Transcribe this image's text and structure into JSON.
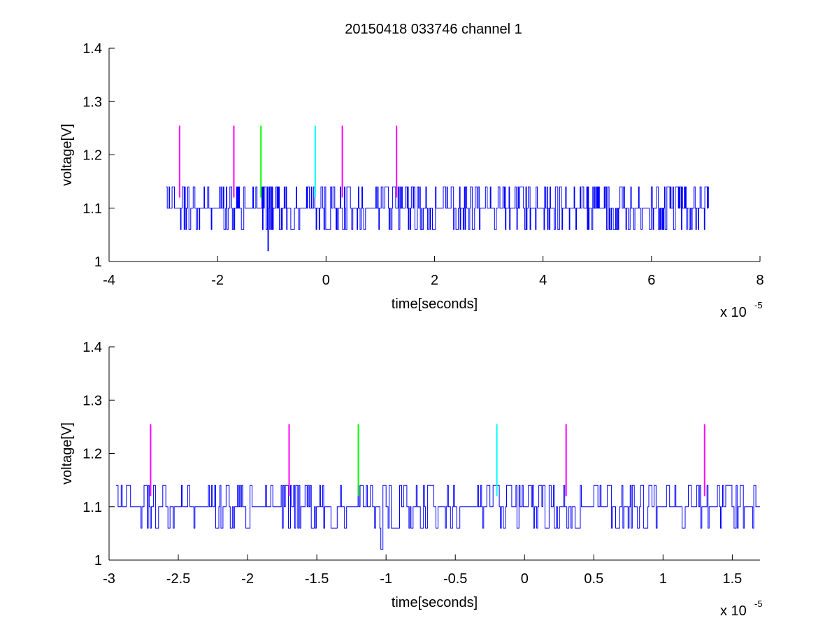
{
  "figure": {
    "title": "20150418 033746 channel 1"
  },
  "chart_data": [
    {
      "type": "line",
      "title": "20150418 033746 channel 1",
      "xlabel": "time[seconds]",
      "ylabel": "voltage[V]",
      "x_exponent_label": "x 10",
      "x_exponent": "-5",
      "xlim": [
        -4,
        8
      ],
      "ylim": [
        1,
        1.4
      ],
      "xticks": [
        "-4",
        "-2",
        "0",
        "2",
        "4",
        "6",
        "8"
      ],
      "yticks": [
        "1",
        "1.1",
        "1.2",
        "1.3",
        "1.4"
      ],
      "grid": false,
      "signal": {
        "color": "#0000ff",
        "x_range": [
          -2.95,
          7.05
        ],
        "levels": [
          1.02,
          1.06,
          1.1,
          1.14
        ],
        "baseline": 1.1
      },
      "markers": [
        {
          "x": -2.7,
          "y0": 1.12,
          "y1": 1.255,
          "color": "#ff00ff"
        },
        {
          "x": -1.7,
          "y0": 1.12,
          "y1": 1.255,
          "color": "#ff00ff"
        },
        {
          "x": -1.2,
          "y0": 1.12,
          "y1": 1.255,
          "color": "#00ff00"
        },
        {
          "x": -0.2,
          "y0": 1.12,
          "y1": 1.255,
          "color": "#00ffff"
        },
        {
          "x": 0.3,
          "y0": 1.12,
          "y1": 1.255,
          "color": "#ff00ff"
        },
        {
          "x": 1.3,
          "y0": 1.12,
          "y1": 1.255,
          "color": "#ff00ff"
        }
      ]
    },
    {
      "type": "line",
      "xlabel": "time[seconds]",
      "ylabel": "voltage[V]",
      "x_exponent_label": "x 10",
      "x_exponent": "-5",
      "xlim": [
        -3,
        1.7
      ],
      "ylim": [
        1,
        1.4
      ],
      "xticks": [
        "-3",
        "-2.5",
        "-2",
        "-1.5",
        "-1",
        "-0.5",
        "0",
        "0.5",
        "1",
        "1.5"
      ],
      "yticks": [
        "1",
        "1.1",
        "1.2",
        "1.3",
        "1.4"
      ],
      "grid": false,
      "signal": {
        "color": "#0000ff",
        "x_range": [
          -2.95,
          1.7
        ],
        "levels": [
          1.02,
          1.06,
          1.1,
          1.14
        ],
        "baseline": 1.1
      },
      "markers": [
        {
          "x": -2.7,
          "y0": 1.12,
          "y1": 1.255,
          "color": "#ff00ff"
        },
        {
          "x": -1.7,
          "y0": 1.12,
          "y1": 1.255,
          "color": "#ff00ff"
        },
        {
          "x": -1.2,
          "y0": 1.12,
          "y1": 1.255,
          "color": "#00ff00"
        },
        {
          "x": -0.2,
          "y0": 1.12,
          "y1": 1.255,
          "color": "#00ffff"
        },
        {
          "x": 0.3,
          "y0": 1.12,
          "y1": 1.255,
          "color": "#ff00ff"
        },
        {
          "x": 1.3,
          "y0": 1.12,
          "y1": 1.255,
          "color": "#ff00ff"
        }
      ]
    }
  ]
}
